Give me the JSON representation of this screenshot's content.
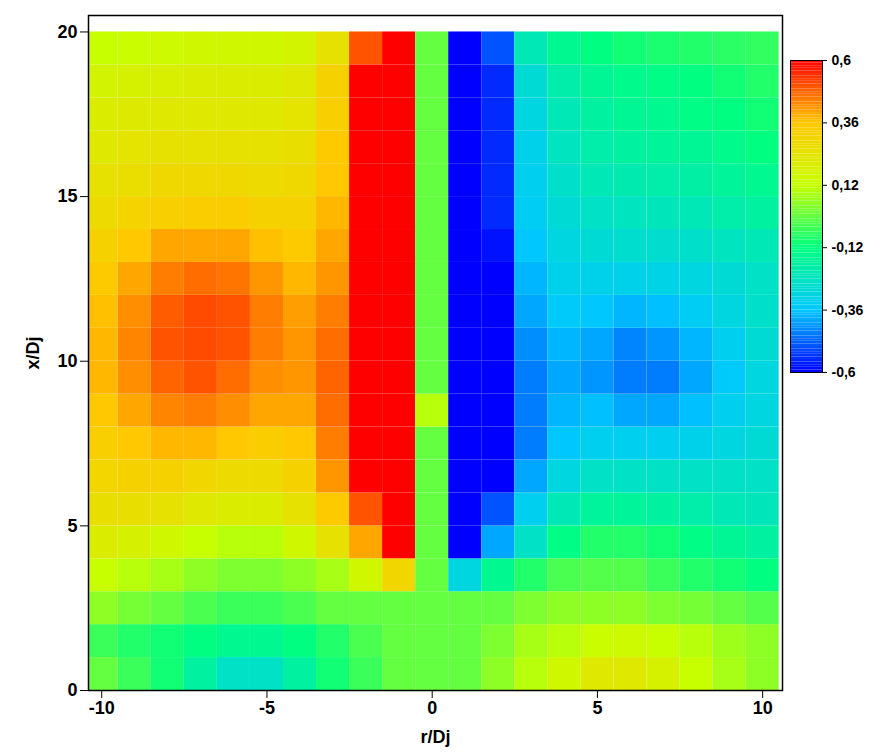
{
  "chart_data": {
    "type": "heatmap",
    "xlabel": "r/Dj",
    "ylabel": "x/Dj",
    "xlim": [
      -10.4,
      10.6
    ],
    "ylim": [
      0,
      20.5
    ],
    "xticks": [
      -10,
      -5,
      0,
      5,
      10
    ],
    "yticks": [
      0,
      5,
      10,
      15,
      20
    ],
    "x": [
      -10,
      -9,
      -8,
      -7,
      -6,
      -5,
      -4,
      -3,
      -2,
      -1,
      0,
      1,
      2,
      3,
      4,
      5,
      6,
      7,
      8,
      9,
      10
    ],
    "y": [
      0.5,
      1.5,
      2.5,
      3.5,
      4.5,
      5.5,
      6.5,
      7.5,
      8.5,
      9.5,
      10.5,
      11.5,
      12.5,
      13.5,
      14.5,
      15.5,
      16.5,
      17.5,
      18.5,
      19.5
    ],
    "values": [
      [
        0.0,
        -0.05,
        -0.1,
        -0.18,
        -0.25,
        -0.25,
        -0.18,
        -0.1,
        -0.05,
        0.0,
        0,
        0.0,
        0.05,
        0.1,
        0.15,
        0.22,
        0.22,
        0.18,
        0.12,
        0.08,
        0.05
      ],
      [
        -0.05,
        -0.08,
        -0.1,
        -0.12,
        -0.15,
        -0.15,
        -0.12,
        -0.08,
        -0.03,
        0,
        0,
        0,
        0.03,
        0.08,
        0.1,
        0.13,
        0.14,
        0.12,
        0.1,
        0.07,
        0.05
      ],
      [
        0.05,
        0.02,
        0,
        -0.03,
        -0.05,
        -0.05,
        -0.03,
        0,
        0,
        0,
        0,
        0,
        0,
        0.03,
        0.05,
        0.05,
        0.05,
        0.03,
        0.02,
        0.0,
        -0.02
      ],
      [
        0.12,
        0.1,
        0.08,
        0.05,
        0.03,
        0.03,
        0.05,
        0.08,
        0.15,
        0.3,
        0,
        -0.3,
        -0.15,
        -0.08,
        -0.03,
        -0.02,
        -0.02,
        -0.05,
        -0.08,
        -0.1,
        -0.12
      ],
      [
        0.2,
        0.18,
        0.15,
        0.12,
        0.1,
        0.1,
        0.15,
        0.25,
        0.4,
        0.6,
        0,
        -0.6,
        -0.4,
        -0.25,
        -0.13,
        -0.08,
        -0.08,
        -0.1,
        -0.13,
        -0.16,
        -0.18
      ],
      [
        0.26,
        0.26,
        0.25,
        0.22,
        0.2,
        0.2,
        0.25,
        0.35,
        0.5,
        0.7,
        0,
        -0.7,
        -0.5,
        -0.33,
        -0.22,
        -0.17,
        -0.17,
        -0.18,
        -0.2,
        -0.22,
        -0.23
      ],
      [
        0.3,
        0.32,
        0.32,
        0.3,
        0.28,
        0.28,
        0.32,
        0.42,
        0.6,
        0.8,
        0,
        -0.8,
        -0.6,
        -0.4,
        -0.3,
        -0.25,
        -0.25,
        -0.25,
        -0.25,
        -0.25,
        -0.25
      ],
      [
        0.33,
        0.36,
        0.38,
        0.38,
        0.36,
        0.34,
        0.36,
        0.45,
        0.65,
        0.8,
        0,
        -0.8,
        -0.65,
        -0.45,
        -0.36,
        -0.33,
        -0.33,
        -0.33,
        -0.32,
        -0.3,
        -0.28
      ],
      [
        0.36,
        0.4,
        0.44,
        0.45,
        0.43,
        0.4,
        0.4,
        0.47,
        0.65,
        0.8,
        0.1,
        -0.8,
        -0.65,
        -0.45,
        -0.38,
        -0.37,
        -0.4,
        -0.4,
        -0.37,
        -0.33,
        -0.3
      ],
      [
        0.38,
        0.43,
        0.48,
        0.5,
        0.47,
        0.43,
        0.42,
        0.48,
        0.65,
        0.8,
        0,
        -0.8,
        -0.65,
        -0.45,
        -0.4,
        -0.42,
        -0.45,
        -0.45,
        -0.4,
        -0.35,
        -0.3
      ],
      [
        0.38,
        0.44,
        0.5,
        0.51,
        0.5,
        0.45,
        0.42,
        0.47,
        0.65,
        0.8,
        0,
        -0.8,
        -0.65,
        -0.43,
        -0.38,
        -0.4,
        -0.44,
        -0.42,
        -0.38,
        -0.33,
        -0.28
      ],
      [
        0.37,
        0.43,
        0.49,
        0.51,
        0.5,
        0.45,
        0.41,
        0.45,
        0.65,
        0.8,
        0,
        -0.8,
        -0.6,
        -0.4,
        -0.35,
        -0.36,
        -0.38,
        -0.37,
        -0.34,
        -0.3,
        -0.26
      ],
      [
        0.35,
        0.4,
        0.45,
        0.47,
        0.46,
        0.42,
        0.38,
        0.42,
        0.62,
        0.8,
        0,
        -0.8,
        -0.6,
        -0.38,
        -0.32,
        -0.32,
        -0.32,
        -0.31,
        -0.3,
        -0.28,
        -0.25
      ],
      [
        0.32,
        0.36,
        0.4,
        0.4,
        0.4,
        0.37,
        0.35,
        0.4,
        0.6,
        0.8,
        0,
        -0.8,
        -0.58,
        -0.36,
        -0.3,
        -0.28,
        -0.27,
        -0.27,
        -0.26,
        -0.24,
        -0.22
      ],
      [
        0.28,
        0.31,
        0.33,
        0.34,
        0.34,
        0.32,
        0.32,
        0.38,
        0.6,
        0.8,
        0,
        -0.8,
        -0.55,
        -0.34,
        -0.28,
        -0.25,
        -0.24,
        -0.23,
        -0.22,
        -0.2,
        -0.18
      ],
      [
        0.25,
        0.27,
        0.29,
        0.29,
        0.29,
        0.28,
        0.29,
        0.36,
        0.6,
        0.8,
        0,
        -0.8,
        -0.55,
        -0.33,
        -0.26,
        -0.22,
        -0.21,
        -0.2,
        -0.19,
        -0.17,
        -0.15
      ],
      [
        0.22,
        0.24,
        0.25,
        0.25,
        0.25,
        0.25,
        0.26,
        0.35,
        0.6,
        0.8,
        0,
        -0.8,
        -0.55,
        -0.32,
        -0.24,
        -0.2,
        -0.18,
        -0.17,
        -0.16,
        -0.14,
        -0.12
      ],
      [
        0.2,
        0.21,
        0.22,
        0.22,
        0.22,
        0.22,
        0.24,
        0.33,
        0.6,
        0.8,
        0,
        -0.8,
        -0.55,
        -0.3,
        -0.22,
        -0.18,
        -0.16,
        -0.15,
        -0.13,
        -0.12,
        -0.1
      ],
      [
        0.17,
        0.18,
        0.19,
        0.2,
        0.2,
        0.2,
        0.22,
        0.32,
        0.6,
        0.8,
        0,
        -0.8,
        -0.55,
        -0.28,
        -0.2,
        -0.16,
        -0.14,
        -0.13,
        -0.12,
        -0.1,
        -0.08
      ],
      [
        0.12,
        0.13,
        0.14,
        0.15,
        0.15,
        0.15,
        0.17,
        0.25,
        0.5,
        0.7,
        0,
        -0.7,
        -0.5,
        -0.22,
        -0.15,
        -0.12,
        -0.1,
        -0.09,
        -0.08,
        -0.07,
        -0.06
      ]
    ],
    "colorbar": {
      "range": [
        -0.6,
        0.6
      ],
      "ticks": [
        {
          "value": 0.6,
          "label": "0,6"
        },
        {
          "value": 0.36,
          "label": "0,36"
        },
        {
          "value": 0.12,
          "label": "0,12"
        },
        {
          "value": -0.12,
          "label": "-0,12"
        },
        {
          "value": -0.36,
          "label": "-0,36"
        },
        {
          "value": -0.6,
          "label": "-0,6"
        }
      ]
    }
  }
}
